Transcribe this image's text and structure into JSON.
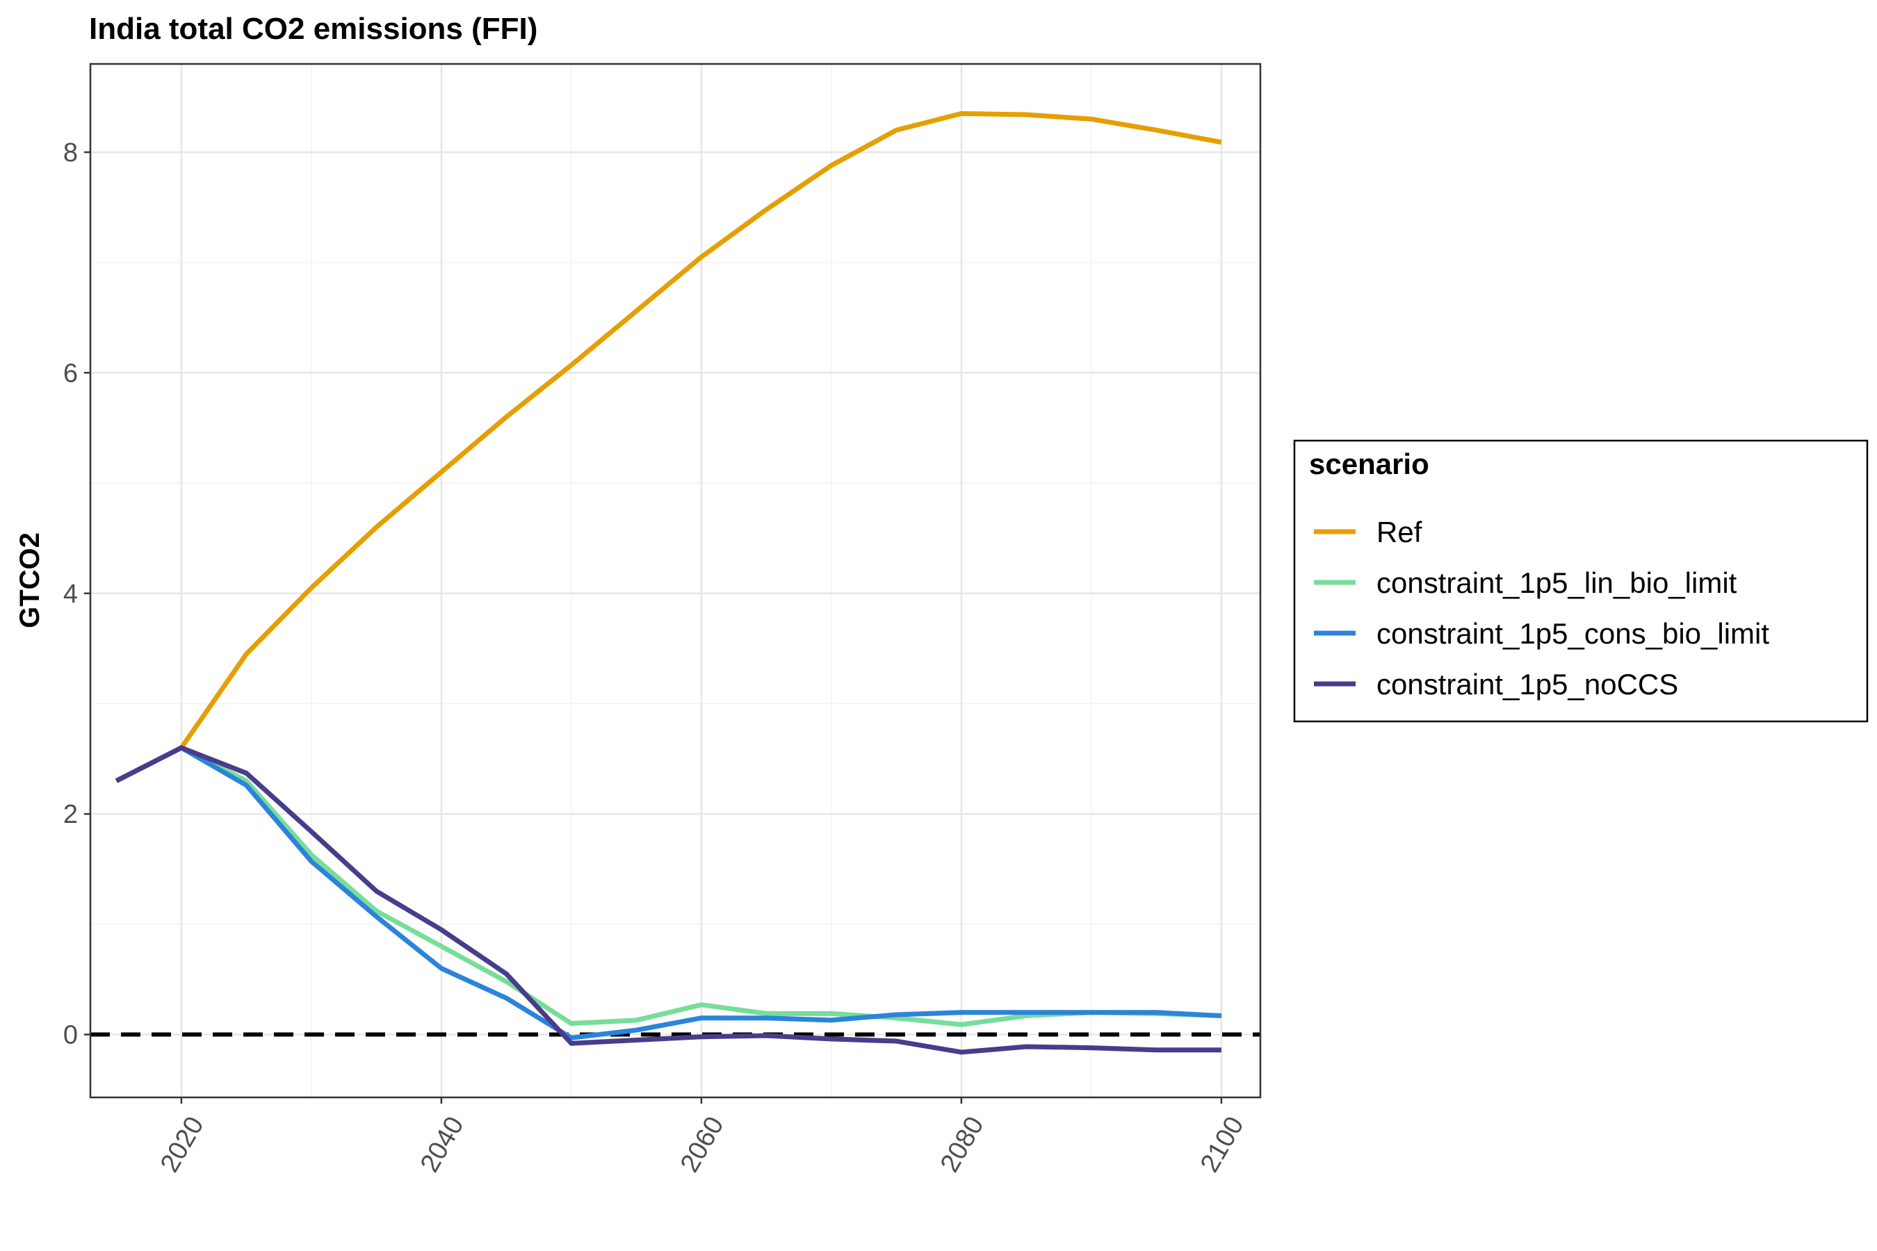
{
  "chart_data": {
    "type": "line",
    "title": "India total CO2 emissions (FFI)",
    "xlabel": "",
    "ylabel": "GTCO2",
    "xlim": [
      2013,
      2103
    ],
    "ylim": [
      -0.57,
      8.8
    ],
    "x_ticks": [
      2020,
      2040,
      2060,
      2080,
      2100
    ],
    "y_ticks": [
      0,
      2,
      4,
      6,
      8
    ],
    "grid": true,
    "legend": {
      "title": "scenario",
      "position": "right"
    },
    "reference_line": {
      "y": 0,
      "style": "dashed",
      "color": "#000000"
    },
    "series": [
      {
        "name": "Ref",
        "color": "#E69F00",
        "x": [
          2015,
          2020,
          2025,
          2030,
          2035,
          2040,
          2045,
          2050,
          2055,
          2060,
          2065,
          2070,
          2075,
          2080,
          2085,
          2090,
          2095,
          2100
        ],
        "y": [
          2.3,
          2.6,
          3.45,
          4.05,
          4.6,
          5.1,
          5.6,
          6.07,
          6.56,
          7.05,
          7.48,
          7.88,
          8.2,
          8.35,
          8.34,
          8.3,
          8.2,
          8.09
        ]
      },
      {
        "name": "constraint_1p5_lin_bio_limit",
        "color": "#77DD99",
        "x": [
          2015,
          2020,
          2025,
          2030,
          2035,
          2040,
          2045,
          2050,
          2055,
          2060,
          2065,
          2070,
          2075,
          2080,
          2085,
          2090,
          2095,
          2100
        ],
        "y": [
          2.3,
          2.6,
          2.3,
          1.63,
          1.12,
          0.8,
          0.48,
          0.1,
          0.13,
          0.27,
          0.19,
          0.19,
          0.15,
          0.09,
          0.17,
          0.2,
          0.19,
          0.17
        ]
      },
      {
        "name": "constraint_1p5_cons_bio_limit",
        "color": "#2B84D9",
        "x": [
          2015,
          2020,
          2025,
          2030,
          2035,
          2040,
          2045,
          2050,
          2055,
          2060,
          2065,
          2070,
          2075,
          2080,
          2085,
          2090,
          2095,
          2100
        ],
        "y": [
          2.3,
          2.6,
          2.26,
          1.57,
          1.07,
          0.6,
          0.33,
          -0.03,
          0.04,
          0.15,
          0.15,
          0.13,
          0.18,
          0.2,
          0.2,
          0.2,
          0.2,
          0.17
        ]
      },
      {
        "name": "constraint_1p5_noCCS",
        "color": "#483D8B",
        "x": [
          2015,
          2020,
          2025,
          2030,
          2035,
          2040,
          2045,
          2050,
          2055,
          2060,
          2065,
          2070,
          2075,
          2080,
          2085,
          2090,
          2095,
          2100
        ],
        "y": [
          2.3,
          2.6,
          2.37,
          1.84,
          1.3,
          0.95,
          0.55,
          -0.08,
          -0.05,
          -0.02,
          -0.01,
          -0.04,
          -0.06,
          -0.16,
          -0.11,
          -0.12,
          -0.14,
          -0.14
        ]
      }
    ]
  }
}
